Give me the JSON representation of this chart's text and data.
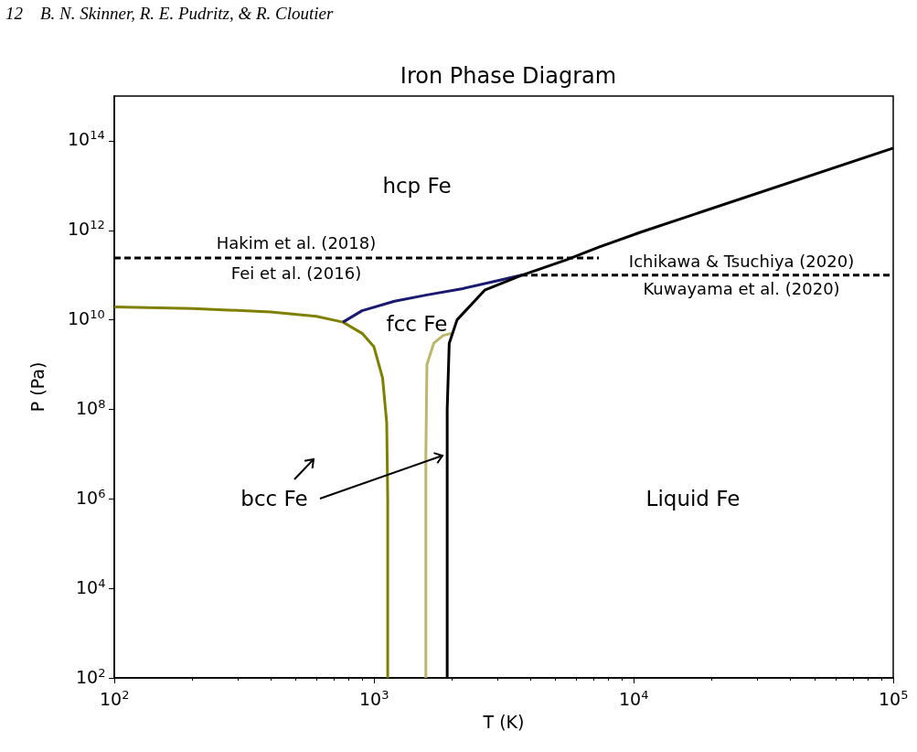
{
  "chart_data": {
    "type": "line",
    "title": "Iron Phase Diagram",
    "xlabel": "T (K)",
    "ylabel": "P (Pa)",
    "log": "xy",
    "grid": false,
    "marker": "none",
    "line_style": "solid",
    "xlim": [
      100,
      100000
    ],
    "ylim": [
      100,
      1000000000000000.0
    ],
    "xticks": [
      {
        "value": 100,
        "label": "10$^{2}$"
      },
      {
        "value": 1000,
        "label": "10$^{3}$"
      },
      {
        "value": 10000,
        "label": "10$^{4}$"
      },
      {
        "value": 100000,
        "label": "10$^{5}$"
      }
    ],
    "yticks": [
      {
        "value": 100,
        "label": "10$^{2}$"
      },
      {
        "value": 10000,
        "label": "10$^{4}$"
      },
      {
        "value": 1000000,
        "label": "10$^{6}$"
      },
      {
        "value": 100000000,
        "label": "10$^{8}$"
      },
      {
        "value": 10000000000,
        "label": "10$^{10}$"
      },
      {
        "value": 1000000000000,
        "label": "10$^{12}$"
      },
      {
        "value": 100000000000000,
        "label": "10$^{14}$"
      }
    ],
    "series": [
      {
        "color": "#808000",
        "x": [
          100,
          200,
          400,
          600,
          760,
          900,
          1000,
          1080,
          1120,
          1130,
          1130
        ],
        "values": [
          19500000000.0,
          18000000000.0,
          15000000000.0,
          12000000000.0,
          8900000000.0,
          5000000000.0,
          2500000000.0,
          500000000.0,
          50000000.0,
          1000000.0,
          100
        ]
      },
      {
        "color": "#bdb76b",
        "x": [
          1585,
          1585,
          1600,
          1700,
          1850,
          1990
        ],
        "values": [
          100,
          10000000.0,
          1000000000.0,
          3000000000.0,
          4500000000.0,
          5000000000.0
        ]
      },
      {
        "color": "#191970",
        "x": [
          760,
          900,
          1200,
          1600,
          2200,
          3000,
          3700
        ],
        "values": [
          8900000000.0,
          16000000000.0,
          26000000000.0,
          36000000000.0,
          50000000000.0,
          75000000000.0,
          100000000000.0
        ]
      },
      {
        "color": "#000000",
        "x": [
          1915,
          1915,
          1950,
          2090,
          2670,
          3690,
          5530,
          7350,
          10600,
          100000
        ],
        "values": [
          100,
          100000000.0,
          3000000000.0,
          10000000000.0,
          46000000000.0,
          98000000000.0,
          220000000000.0,
          420000000000.0,
          900000000000.0,
          69000000000000.0
        ]
      },
      {
        "color": "#000000",
        "line_style": "dashed",
        "x": [
          100,
          7350
        ],
        "values": [
          240000000000.0,
          240000000000.0
        ]
      },
      {
        "color": "#000000",
        "line_style": "dashed",
        "x": [
          3690,
          100000
        ],
        "values": [
          100000000000.0,
          100000000000.0
        ]
      }
    ],
    "annotations": [
      "12    B. N. Skinner, R. E. Pudritz, & R. Cloutier",
      "Hakim et al. (2018)",
      "Fei et al. (2016)",
      "Ichikawa & Tsuchiya (2020)",
      "Kuwayama et al. (2020)",
      "hcp Fe",
      "fcc Fe",
      "Liquid Fe",
      "bcc Fe"
    ]
  }
}
